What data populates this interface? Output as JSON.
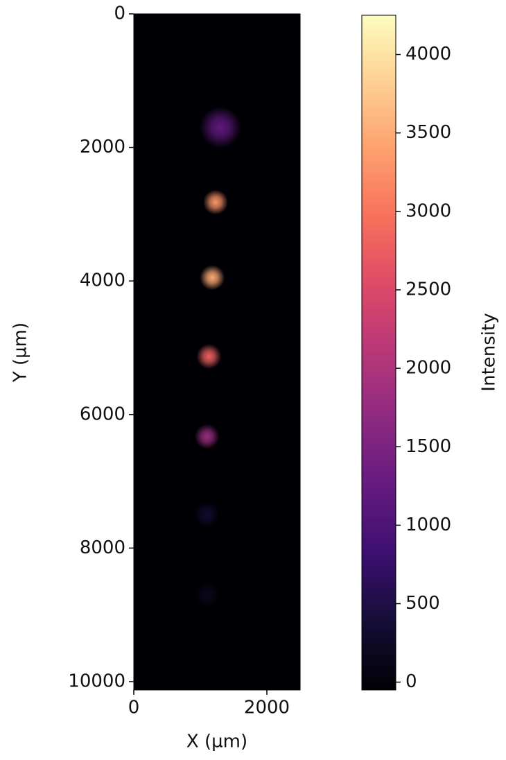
{
  "chart_data": {
    "type": "image",
    "xlabel": "X (µm)",
    "ylabel": "Y (µm)",
    "colorbar_label": "Intensity",
    "xlim": [
      0,
      2500
    ],
    "ylim": [
      0,
      10125
    ],
    "xticks": [
      0,
      2000
    ],
    "yticks": [
      0,
      2000,
      4000,
      6000,
      8000,
      10000
    ],
    "clim": [
      -50,
      4250
    ],
    "cticks": [
      0,
      500,
      1000,
      1500,
      2000,
      2500,
      3000,
      3500,
      4000
    ],
    "background": "#000004",
    "colormap": [
      "#000004",
      "#140e36",
      "#3b0f70",
      "#641a80",
      "#8c2981",
      "#b73779",
      "#de4968",
      "#f7705c",
      "#fe9f6d",
      "#fecf92",
      "#fcfdbf"
    ],
    "spots": [
      {
        "x": 1300,
        "y": 1700,
        "intensity": 1200
      },
      {
        "x": 1230,
        "y": 2820,
        "intensity": 3300
      },
      {
        "x": 1180,
        "y": 3950,
        "intensity": 3500
      },
      {
        "x": 1130,
        "y": 5130,
        "intensity": 2800
      },
      {
        "x": 1100,
        "y": 6330,
        "intensity": 1800
      },
      {
        "x": 1100,
        "y": 7500,
        "intensity": 300
      },
      {
        "x": 1100,
        "y": 8700,
        "intensity": 150
      }
    ]
  }
}
